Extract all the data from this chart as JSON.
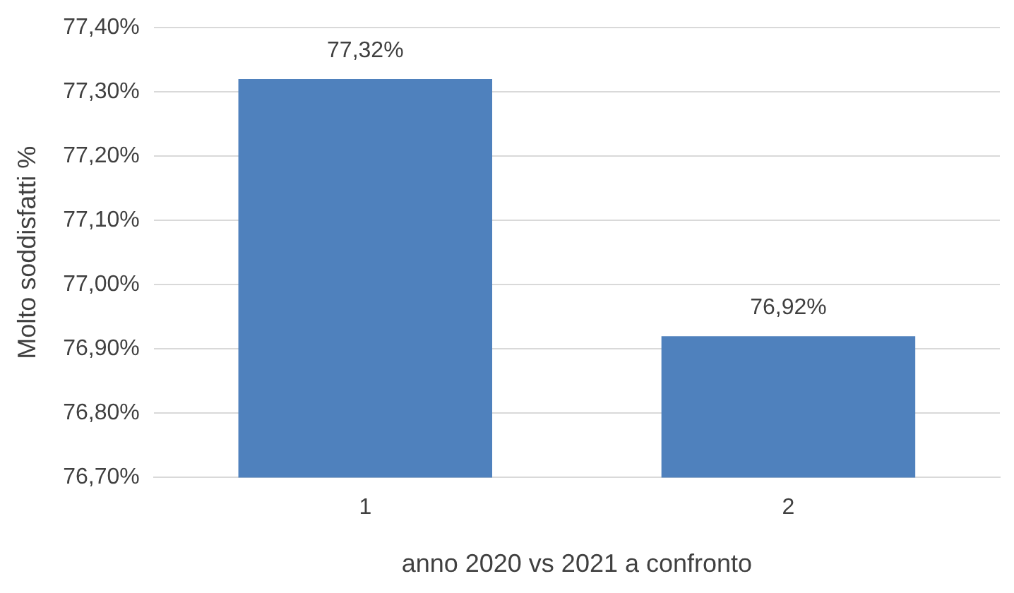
{
  "chart_data": {
    "type": "bar",
    "xlabel": "anno 2020 vs 2021 a confronto",
    "ylabel": "Molto soddisfatti %",
    "categories": [
      "1",
      "2"
    ],
    "values": [
      77.32,
      76.92
    ],
    "color": "#4f81bd",
    "value_labels": [
      "77,32%",
      "76,92%"
    ],
    "ylim": [
      76.7,
      77.4
    ],
    "yticks": [
      {
        "value": 76.7,
        "label": "76,70%"
      },
      {
        "value": 76.8,
        "label": "76,80%"
      },
      {
        "value": 76.9,
        "label": "76,90%"
      },
      {
        "value": 77.0,
        "label": "77,00%"
      },
      {
        "value": 77.1,
        "label": "77,10%"
      },
      {
        "value": 77.2,
        "label": "77,20%"
      },
      {
        "value": 77.3,
        "label": "77,30%"
      },
      {
        "value": 77.4,
        "label": "77,40%"
      }
    ],
    "grid": "y",
    "legend": false
  }
}
